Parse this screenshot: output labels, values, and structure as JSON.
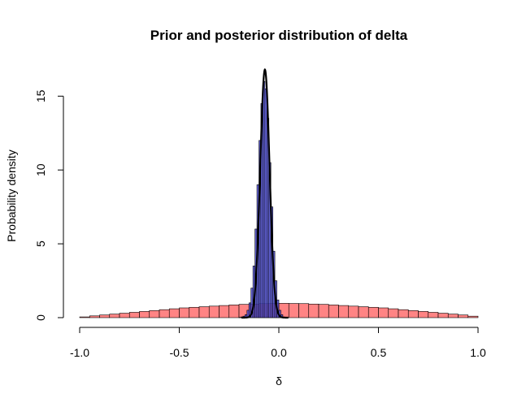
{
  "chart_data": {
    "type": "bar",
    "title": "Prior and posterior distribution of delta",
    "xlabel": "δ",
    "ylabel": "Probability density",
    "xlim": [
      -1.0,
      1.0
    ],
    "ylim": [
      0,
      17
    ],
    "x_ticks": [
      "-1.0",
      "-0.5",
      "0.0",
      "0.5",
      "1.0"
    ],
    "y_ticks": [
      "0",
      "5",
      "10",
      "15"
    ],
    "grid": false,
    "series": [
      {
        "kind": "histogram",
        "color": "#FF6E6E",
        "bin_edges": [
          -1.0,
          -0.95,
          -0.9,
          -0.85,
          -0.8,
          -0.75,
          -0.7,
          -0.65,
          -0.6,
          -0.55,
          -0.5,
          -0.45,
          -0.4,
          -0.35,
          -0.3,
          -0.25,
          -0.2,
          -0.15,
          -0.1,
          -0.05,
          0.0,
          0.05,
          0.1,
          0.15,
          0.2,
          0.25,
          0.3,
          0.35,
          0.4,
          0.45,
          0.5,
          0.55,
          0.6,
          0.65,
          0.7,
          0.75,
          0.8,
          0.85,
          0.9,
          0.95,
          1.0
        ],
        "values": [
          0.05,
          0.12,
          0.18,
          0.24,
          0.3,
          0.36,
          0.42,
          0.48,
          0.54,
          0.6,
          0.66,
          0.7,
          0.74,
          0.78,
          0.82,
          0.86,
          0.9,
          0.92,
          0.95,
          0.96,
          0.97,
          0.96,
          0.95,
          0.92,
          0.9,
          0.86,
          0.82,
          0.78,
          0.74,
          0.7,
          0.66,
          0.6,
          0.54,
          0.48,
          0.42,
          0.36,
          0.3,
          0.24,
          0.18,
          0.1
        ]
      },
      {
        "kind": "histogram",
        "color": "#4B4BD6",
        "bin_edges": [
          -0.2,
          -0.19,
          -0.18,
          -0.17,
          -0.16,
          -0.15,
          -0.14,
          -0.13,
          -0.12,
          -0.11,
          -0.1,
          -0.09,
          -0.08,
          -0.07,
          -0.06,
          -0.05,
          -0.04,
          -0.03,
          -0.02,
          -0.01,
          0.0,
          0.01,
          0.02,
          0.03
        ],
        "values": [
          0.02,
          0.05,
          0.1,
          0.2,
          0.5,
          1.0,
          2.0,
          3.5,
          6.0,
          9.0,
          12.0,
          14.5,
          16.0,
          15.5,
          13.5,
          10.5,
          7.5,
          4.5,
          2.5,
          1.2,
          0.5,
          0.2,
          0.05
        ]
      },
      {
        "kind": "density-line",
        "color": "#000000",
        "mean": -0.07,
        "sd": 0.0235,
        "scale": 1.0
      }
    ]
  }
}
